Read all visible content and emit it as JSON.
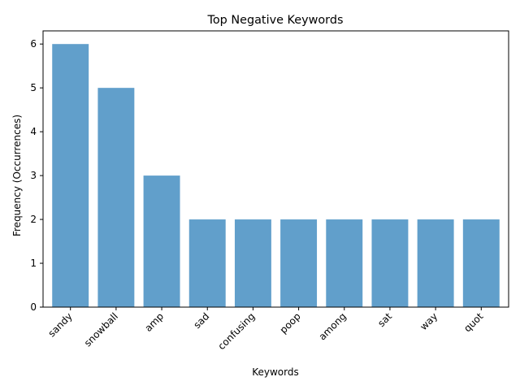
{
  "chart_data": {
    "type": "bar",
    "title": "Top Negative Keywords",
    "xlabel": "Keywords",
    "ylabel": "Frequency (Occurrences)",
    "categories": [
      "sandy",
      "snowball",
      "amp",
      "sad",
      "confusing",
      "poop",
      "among",
      "sat",
      "way",
      "quot"
    ],
    "values": [
      6,
      5,
      3,
      2,
      2,
      2,
      2,
      2,
      2,
      2
    ],
    "ylim": [
      0,
      6.3
    ],
    "yticks": [
      "0",
      "1",
      "2",
      "3",
      "4",
      "5",
      "6"
    ],
    "grid": false,
    "legend": "none",
    "bar_color": "#619fcb"
  }
}
